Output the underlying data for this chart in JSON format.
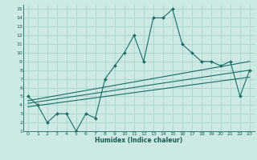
{
  "xlabel": "Humidex (Indice chaleur)",
  "bg_color": "#cce9e5",
  "grid_color": "#aad4cf",
  "line_color": "#1a6e62",
  "xlim": [
    -0.5,
    23.5
  ],
  "ylim": [
    1,
    15.5
  ],
  "xticks": [
    0,
    1,
    2,
    3,
    4,
    5,
    6,
    7,
    8,
    9,
    10,
    11,
    12,
    13,
    14,
    15,
    16,
    17,
    18,
    19,
    20,
    21,
    22,
    23
  ],
  "yticks": [
    1,
    2,
    3,
    4,
    5,
    6,
    7,
    8,
    9,
    10,
    11,
    12,
    13,
    14,
    15
  ],
  "main_x": [
    0,
    1,
    2,
    3,
    4,
    5,
    6,
    7,
    8,
    9,
    10,
    11,
    12,
    13,
    14,
    15,
    16,
    17,
    18,
    19,
    20,
    21,
    22,
    23
  ],
  "main_y": [
    5,
    4,
    2,
    3,
    3,
    1,
    3,
    2.5,
    7,
    8.5,
    10,
    12,
    9,
    14,
    14,
    15,
    11,
    10,
    9,
    9,
    8.5,
    9,
    5,
    8
  ],
  "line2_x": [
    0,
    23
  ],
  "line2_y": [
    4.5,
    9.0
  ],
  "line3_x": [
    0,
    23
  ],
  "line3_y": [
    4.2,
    8.0
  ],
  "line4_x": [
    0,
    23
  ],
  "line4_y": [
    3.8,
    7.2
  ]
}
